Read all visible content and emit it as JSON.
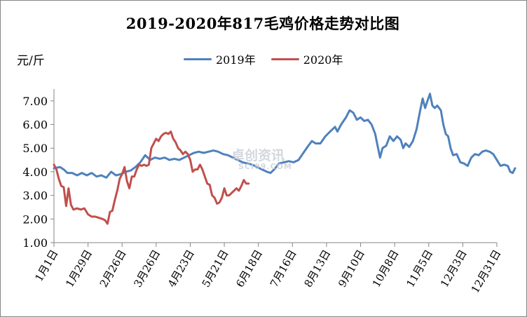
{
  "chart_data": {
    "type": "line",
    "title": "2019-2020年817毛鸡价格走势对比图",
    "ylabel": "元/斤",
    "ylim": [
      1.0,
      7.5
    ],
    "yticks": [
      "1.00",
      "2.00",
      "3.00",
      "4.00",
      "5.00",
      "6.00",
      "7.00"
    ],
    "xticks": [
      "1月1日",
      "1月29日",
      "2月26日",
      "3月26日",
      "4月23日",
      "5月21日",
      "6月18日",
      "7月16日",
      "8月13日",
      "9月10日",
      "10月8日",
      "11月5日",
      "12月3日",
      "12月31日"
    ],
    "grid": false,
    "legend_position": "top",
    "series": [
      {
        "name": "2019年",
        "color": "#4f81bd",
        "points": [
          [
            0,
            4.15
          ],
          [
            5,
            4.2
          ],
          [
            8,
            4.1
          ],
          [
            11,
            3.95
          ],
          [
            15,
            3.95
          ],
          [
            19,
            3.85
          ],
          [
            23,
            3.95
          ],
          [
            27,
            3.85
          ],
          [
            31,
            3.95
          ],
          [
            35,
            3.8
          ],
          [
            39,
            3.85
          ],
          [
            43,
            3.75
          ],
          [
            47,
            4.0
          ],
          [
            51,
            3.85
          ],
          [
            55,
            3.9
          ],
          [
            59,
            4.0
          ],
          [
            63,
            4.05
          ],
          [
            67,
            4.2
          ],
          [
            71,
            4.4
          ],
          [
            75,
            4.7
          ],
          [
            79,
            4.5
          ],
          [
            83,
            4.6
          ],
          [
            87,
            4.55
          ],
          [
            91,
            4.6
          ],
          [
            95,
            4.5
          ],
          [
            99,
            4.55
          ],
          [
            103,
            4.5
          ],
          [
            107,
            4.6
          ],
          [
            111,
            4.7
          ],
          [
            115,
            4.8
          ],
          [
            119,
            4.85
          ],
          [
            123,
            4.8
          ],
          [
            127,
            4.85
          ],
          [
            131,
            4.9
          ],
          [
            135,
            4.85
          ],
          [
            139,
            4.75
          ],
          [
            143,
            4.7
          ],
          [
            147,
            4.6
          ],
          [
            151,
            4.5
          ],
          [
            155,
            4.4
          ],
          [
            159,
            4.35
          ],
          [
            163,
            4.3
          ],
          [
            167,
            4.2
          ],
          [
            171,
            4.1
          ],
          [
            175,
            4.0
          ],
          [
            178,
            3.95
          ],
          [
            181,
            4.1
          ],
          [
            185,
            4.35
          ],
          [
            189,
            4.4
          ],
          [
            193,
            4.45
          ],
          [
            197,
            4.4
          ],
          [
            201,
            4.5
          ],
          [
            205,
            4.8
          ],
          [
            209,
            5.1
          ],
          [
            212,
            5.3
          ],
          [
            215,
            5.2
          ],
          [
            219,
            5.2
          ],
          [
            223,
            5.5
          ],
          [
            227,
            5.7
          ],
          [
            231,
            5.9
          ],
          [
            233,
            5.7
          ],
          [
            236,
            6.0
          ],
          [
            240,
            6.3
          ],
          [
            243,
            6.6
          ],
          [
            246,
            6.5
          ],
          [
            249,
            6.2
          ],
          [
            252,
            6.3
          ],
          [
            255,
            6.15
          ],
          [
            258,
            6.2
          ],
          [
            261,
            6.0
          ],
          [
            264,
            5.6
          ],
          [
            266,
            5.1
          ],
          [
            268,
            4.6
          ],
          [
            270,
            5.0
          ],
          [
            273,
            5.1
          ],
          [
            276,
            5.5
          ],
          [
            279,
            5.3
          ],
          [
            282,
            5.5
          ],
          [
            285,
            5.35
          ],
          [
            287,
            5.0
          ],
          [
            289,
            5.2
          ],
          [
            292,
            5.05
          ],
          [
            295,
            5.3
          ],
          [
            298,
            5.8
          ],
          [
            301,
            6.6
          ],
          [
            303,
            7.1
          ],
          [
            305,
            6.7
          ],
          [
            307,
            7.0
          ],
          [
            309,
            7.3
          ],
          [
            311,
            6.8
          ],
          [
            313,
            6.7
          ],
          [
            315,
            6.8
          ],
          [
            318,
            6.6
          ],
          [
            320,
            6.0
          ],
          [
            322,
            5.6
          ],
          [
            324,
            5.5
          ],
          [
            326,
            5.0
          ],
          [
            328,
            4.7
          ],
          [
            331,
            4.75
          ],
          [
            334,
            4.4
          ],
          [
            337,
            4.35
          ],
          [
            340,
            4.25
          ],
          [
            343,
            4.6
          ],
          [
            346,
            4.75
          ],
          [
            349,
            4.7
          ],
          [
            352,
            4.85
          ],
          [
            355,
            4.9
          ],
          [
            358,
            4.85
          ],
          [
            361,
            4.75
          ],
          [
            364,
            4.5
          ],
          [
            367,
            4.25
          ],
          [
            370,
            4.3
          ],
          [
            373,
            4.25
          ],
          [
            375,
            4.0
          ],
          [
            377,
            3.95
          ],
          [
            379,
            4.15
          ]
        ]
      },
      {
        "name": "2020年",
        "color": "#c0504d",
        "points": [
          [
            0,
            4.3
          ],
          [
            2,
            4.1
          ],
          [
            4,
            3.7
          ],
          [
            6,
            3.4
          ],
          [
            8,
            3.35
          ],
          [
            10,
            2.55
          ],
          [
            12,
            3.3
          ],
          [
            14,
            2.6
          ],
          [
            16,
            2.4
          ],
          [
            19,
            2.45
          ],
          [
            22,
            2.4
          ],
          [
            25,
            2.45
          ],
          [
            28,
            2.2
          ],
          [
            31,
            2.1
          ],
          [
            34,
            2.1
          ],
          [
            37,
            2.05
          ],
          [
            40,
            2.0
          ],
          [
            42,
            1.95
          ],
          [
            44,
            1.8
          ],
          [
            46,
            2.3
          ],
          [
            48,
            2.35
          ],
          [
            50,
            2.8
          ],
          [
            52,
            3.2
          ],
          [
            54,
            3.7
          ],
          [
            56,
            3.9
          ],
          [
            58,
            4.2
          ],
          [
            60,
            3.6
          ],
          [
            62,
            3.3
          ],
          [
            64,
            3.8
          ],
          [
            66,
            3.8
          ],
          [
            68,
            4.1
          ],
          [
            70,
            4.3
          ],
          [
            72,
            4.25
          ],
          [
            74,
            4.3
          ],
          [
            76,
            4.25
          ],
          [
            78,
            4.3
          ],
          [
            80,
            5.0
          ],
          [
            82,
            5.2
          ],
          [
            84,
            5.4
          ],
          [
            86,
            5.3
          ],
          [
            88,
            5.5
          ],
          [
            90,
            5.6
          ],
          [
            92,
            5.65
          ],
          [
            94,
            5.6
          ],
          [
            96,
            5.7
          ],
          [
            98,
            5.4
          ],
          [
            100,
            5.25
          ],
          [
            102,
            5.0
          ],
          [
            104,
            4.9
          ],
          [
            106,
            4.75
          ],
          [
            108,
            4.85
          ],
          [
            110,
            4.75
          ],
          [
            112,
            4.5
          ],
          [
            114,
            4.0
          ],
          [
            116,
            4.1
          ],
          [
            118,
            4.1
          ],
          [
            120,
            4.3
          ],
          [
            122,
            4.1
          ],
          [
            124,
            3.8
          ],
          [
            126,
            3.5
          ],
          [
            128,
            3.45
          ],
          [
            130,
            3.0
          ],
          [
            132,
            2.9
          ],
          [
            134,
            2.65
          ],
          [
            136,
            2.7
          ],
          [
            138,
            2.9
          ],
          [
            140,
            3.3
          ],
          [
            142,
            3.0
          ],
          [
            144,
            3.0
          ],
          [
            146,
            3.1
          ],
          [
            148,
            3.2
          ],
          [
            150,
            3.3
          ],
          [
            152,
            3.2
          ],
          [
            154,
            3.4
          ],
          [
            156,
            3.65
          ],
          [
            158,
            3.5
          ],
          [
            160,
            3.5
          ]
        ]
      }
    ]
  },
  "watermark": {
    "text": "卓创资讯",
    "sub": "SCI99.COM"
  }
}
